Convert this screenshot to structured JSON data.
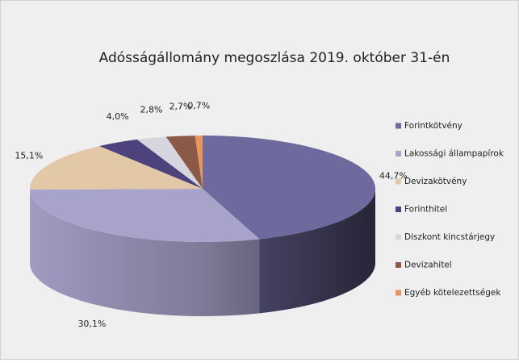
{
  "chart_data": {
    "type": "pie3d",
    "title": "Adósságállomány megoszlása 2019. október 31-én",
    "categories": [
      "Forintkötvény",
      "Lakossági állampapírok",
      "Devizakötvény",
      "Forinthitel",
      "Diszkont kincstárjegy",
      "Devizahitel",
      "Egyéb kötelezettségek"
    ],
    "values": [
      44.7,
      30.1,
      15.1,
      4.0,
      2.8,
      2.7,
      0.7
    ],
    "value_labels": [
      "44,7%",
      "30,1%",
      "15,1%",
      "4,0%",
      "2,8%",
      "2,7%",
      "0,7%"
    ],
    "colors": [
      "#6e6a9e",
      "#a8a3cb",
      "#e2c8a6",
      "#4d427c",
      "#d6d6de",
      "#8a5947",
      "#e8965a"
    ],
    "legend": "right"
  }
}
